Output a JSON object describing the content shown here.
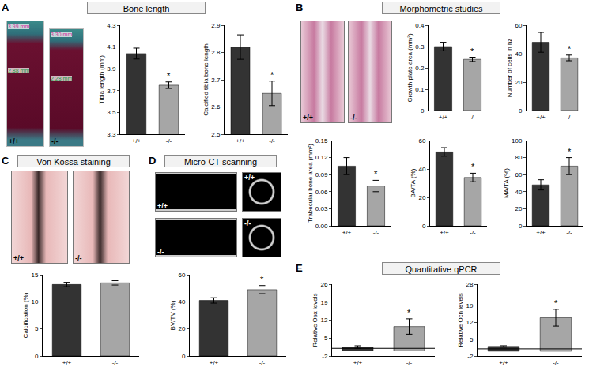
{
  "panels": [
    {
      "letter": "A",
      "title": "Bone length",
      "images": [
        {
          "label": "+/+",
          "texts": [
            "3.99 mm",
            "2.88 mm"
          ]
        },
        {
          "label": "-/-",
          "texts": [
            "3.30 mm",
            "2.28 mm"
          ]
        }
      ]
    },
    {
      "letter": "B",
      "title": "Morphometric studies",
      "images": [
        {
          "label": "+/+",
          "texts": []
        },
        {
          "label": "-/-",
          "texts": []
        }
      ]
    },
    {
      "letter": "C",
      "title": "Von Kossa staining",
      "images": [
        {
          "label": "+/+",
          "texts": []
        },
        {
          "label": "-/-",
          "texts": []
        }
      ]
    },
    {
      "letter": "D",
      "title": "Micro-CT scanning",
      "images": [
        {
          "label": "+/+",
          "texts": []
        },
        {
          "label": "+/+",
          "texts": []
        },
        {
          "label": "-/-",
          "texts": []
        },
        {
          "label": "-/-",
          "texts": []
        }
      ]
    },
    {
      "letter": "E",
      "title": "Quantitative qPCR",
      "images": []
    }
  ],
  "chart_data": [
    {
      "panel": "A",
      "type": "bar",
      "y_label": "Tibia length (mm)",
      "categories": [
        "+/+",
        "-/-"
      ],
      "values": [
        4.04,
        3.75
      ],
      "errors": [
        0.05,
        0.03
      ],
      "colors": [
        "#333333",
        "#a6a6a6"
      ],
      "ylim": [
        3.3,
        4.3
      ],
      "yticks": [
        3.3,
        3.5,
        3.7,
        3.9,
        4.1,
        4.3
      ],
      "annotations": [
        {
          "category": "-/-",
          "text": "*"
        }
      ]
    },
    {
      "panel": "A",
      "type": "bar",
      "y_label": "Calcified tibia bone length",
      "categories": [
        "+/+",
        "-/-"
      ],
      "values": [
        2.82,
        2.65
      ],
      "errors": [
        0.045,
        0.045
      ],
      "colors": [
        "#333333",
        "#a6a6a6"
      ],
      "ylim": [
        2.5,
        2.9
      ],
      "yticks": [
        2.5,
        2.6,
        2.7,
        2.8,
        2.9
      ],
      "annotations": [
        {
          "category": "-/-",
          "text": "*"
        }
      ]
    },
    {
      "panel": "B",
      "type": "bar",
      "y_label": "Growth plate area (mm²)",
      "categories": [
        "+/+",
        "-/-"
      ],
      "values": [
        0.3,
        0.24
      ],
      "errors": [
        0.02,
        0.01
      ],
      "colors": [
        "#333333",
        "#a6a6a6"
      ],
      "ylim": [
        0,
        0.4
      ],
      "yticks": [
        0,
        0.1,
        0.2,
        0.3,
        0.4
      ],
      "annotations": [
        {
          "category": "-/-",
          "text": "*"
        }
      ]
    },
    {
      "panel": "B",
      "type": "bar",
      "y_label": "Number of cells in hz",
      "categories": [
        "+/+",
        "-/-"
      ],
      "values": [
        48,
        37
      ],
      "errors": [
        7,
        2
      ],
      "colors": [
        "#333333",
        "#a6a6a6"
      ],
      "ylim": [
        0,
        60
      ],
      "yticks": [
        0,
        20,
        40,
        60
      ],
      "annotations": [
        {
          "category": "-/-",
          "text": "*"
        }
      ]
    },
    {
      "panel": "B",
      "type": "bar",
      "y_label": "Trabecular bone area (mm²)",
      "categories": [
        "+/+",
        "-/-"
      ],
      "values": [
        0.105,
        0.07
      ],
      "errors": [
        0.015,
        0.01
      ],
      "colors": [
        "#333333",
        "#a6a6a6"
      ],
      "ylim": [
        0,
        0.15
      ],
      "yticks": [
        {
          "value": 0,
          "label": "0.00"
        },
        {
          "value": 0.03,
          "label": "0.03"
        },
        {
          "value": 0.06,
          "label": "0.06"
        },
        {
          "value": 0.09,
          "label": "0.09"
        },
        {
          "value": 0.12,
          "label": "0.12"
        },
        {
          "value": 0.15,
          "label": "0.15"
        }
      ],
      "annotations": [
        {
          "category": "-/-",
          "text": "*"
        }
      ]
    },
    {
      "panel": "B",
      "type": "bar",
      "y_label": "BA/TA (%)",
      "categories": [
        "+/+",
        "-/-"
      ],
      "values": [
        52,
        34
      ],
      "errors": [
        3,
        3
      ],
      "colors": [
        "#333333",
        "#a6a6a6"
      ],
      "ylim": [
        0,
        60
      ],
      "yticks": [
        0,
        20,
        40,
        60
      ],
      "annotations": [
        {
          "category": "-/-",
          "text": "*"
        }
      ]
    },
    {
      "panel": "B",
      "type": "bar",
      "y_label": "MA/TA (%)",
      "categories": [
        "+/+",
        "-/-"
      ],
      "values": [
        48,
        70
      ],
      "errors": [
        6,
        10
      ],
      "colors": [
        "#333333",
        "#a6a6a6"
      ],
      "ylim": [
        0,
        100
      ],
      "yticks": [
        0,
        20,
        40,
        60,
        80,
        100
      ],
      "annotations": [
        {
          "category": "-/-",
          "text": "*"
        }
      ]
    },
    {
      "panel": "C",
      "type": "bar",
      "y_label": "Calcification (%)",
      "categories": [
        "+/+",
        "-/-"
      ],
      "values": [
        13.2,
        13.5
      ],
      "errors": [
        0.4,
        0.4
      ],
      "colors": [
        "#333333",
        "#a6a6a6"
      ],
      "ylim": [
        0,
        15
      ],
      "yticks": [
        0,
        5,
        10,
        15
      ],
      "annotations": []
    },
    {
      "panel": "D",
      "type": "bar",
      "y_label": "BV/TV (%)",
      "categories": [
        "+/+",
        "-/-"
      ],
      "values": [
        41,
        49
      ],
      "errors": [
        2,
        3
      ],
      "colors": [
        "#333333",
        "#a6a6a6"
      ],
      "ylim": [
        0,
        60
      ],
      "yticks": [
        0,
        20,
        40,
        60
      ],
      "annotations": [
        {
          "category": "-/-",
          "text": "*"
        }
      ]
    },
    {
      "panel": "E",
      "type": "bar",
      "y_label": "Relative Osx levels",
      "categories": [
        "+/+",
        "-/-"
      ],
      "values": [
        1.5,
        9.5
      ],
      "errors": [
        0.5,
        3
      ],
      "colors": [
        "#333333",
        "#a6a6a6"
      ],
      "ylim": [
        -2,
        26
      ],
      "yticks": [
        -2,
        5,
        12,
        19,
        26
      ],
      "hline": 1,
      "annotations": [
        {
          "category": "-/-",
          "text": "*"
        }
      ]
    },
    {
      "panel": "E",
      "type": "bar",
      "y_label": "Relative Ocn levels",
      "categories": [
        "+/+",
        "-/-"
      ],
      "values": [
        2,
        14
      ],
      "errors": [
        0.3,
        3.5
      ],
      "colors": [
        "#333333",
        "#a6a6a6"
      ],
      "ylim": [
        -2,
        28
      ],
      "yticks": [
        -2,
        5,
        12,
        19,
        28
      ],
      "hline": 1,
      "annotations": [
        {
          "category": "-/-",
          "text": "*"
        }
      ]
    }
  ]
}
